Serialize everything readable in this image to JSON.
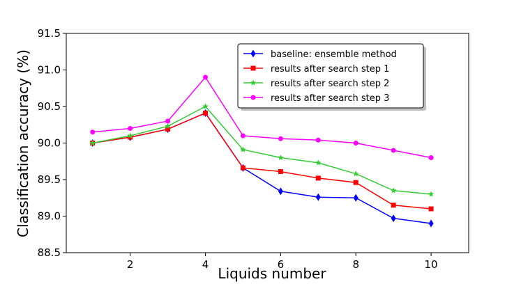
{
  "chart_data": {
    "type": "line",
    "title": "",
    "xlabel": "Liquids number",
    "ylabel": "Classification accuracy (%)",
    "xlim": [
      0.3,
      11.0
    ],
    "ylim": [
      88.5,
      91.5
    ],
    "xticks": [
      2,
      4,
      6,
      8,
      10
    ],
    "yticks": [
      "88.5",
      "89.0",
      "89.5",
      "90.0",
      "90.5",
      "91.0",
      "91.5"
    ],
    "grid": false,
    "legend_position": "top-right",
    "x": [
      1,
      2,
      3,
      4,
      5,
      6,
      7,
      8,
      9,
      10
    ],
    "series": [
      {
        "name": "baseline: ensemble method",
        "color": "#0000ff",
        "marker": "diamond",
        "values": [
          90.0,
          90.08,
          90.19,
          90.41,
          89.66,
          89.34,
          89.26,
          89.25,
          88.97,
          88.9
        ]
      },
      {
        "name": "results after search step 1",
        "color": "#ff0000",
        "marker": "square",
        "values": [
          90.0,
          90.08,
          90.19,
          90.41,
          89.66,
          89.61,
          89.52,
          89.46,
          89.15,
          89.1
        ]
      },
      {
        "name": "results after search step 2",
        "color": "#33cc33",
        "marker": "star",
        "values": [
          90.0,
          90.1,
          90.23,
          90.5,
          89.91,
          89.8,
          89.73,
          89.58,
          89.35,
          89.3
        ]
      },
      {
        "name": "results after search step 3",
        "color": "#ff00ff",
        "marker": "circle",
        "values": [
          90.15,
          90.2,
          90.3,
          90.9,
          90.1,
          90.06,
          90.04,
          90.0,
          89.9,
          89.8
        ]
      }
    ]
  }
}
